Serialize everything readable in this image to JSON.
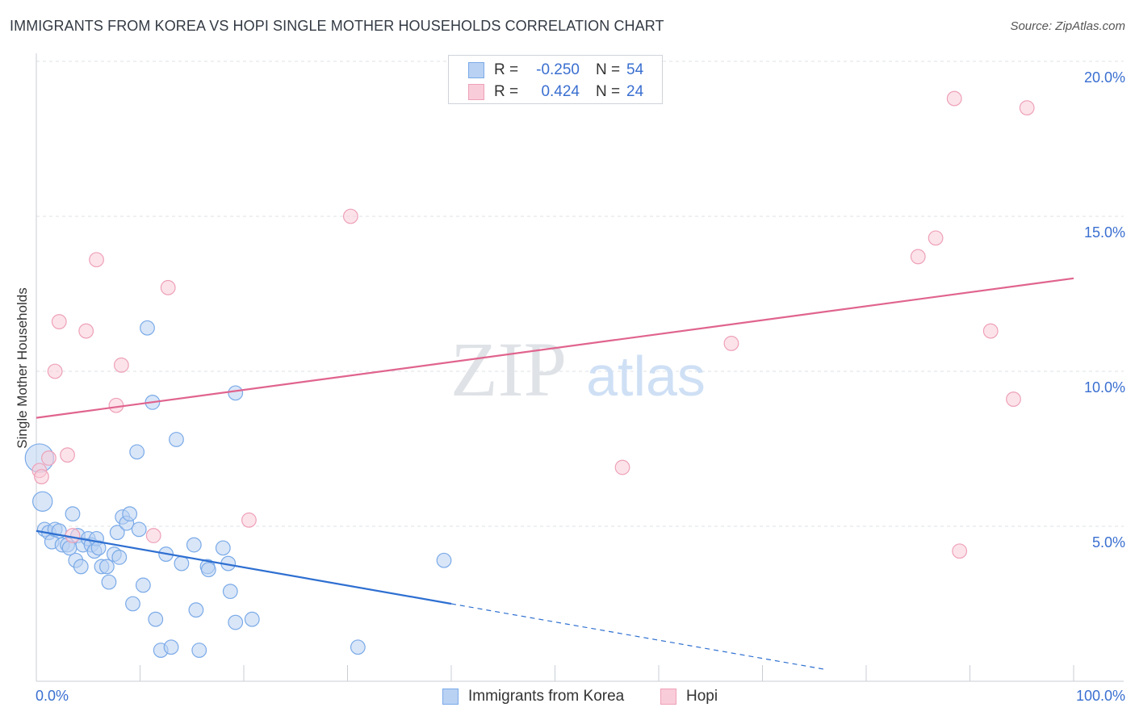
{
  "chart_data": {
    "type": "scatter",
    "title": "IMMIGRANTS FROM KOREA VS HOPI SINGLE MOTHER HOUSEHOLDS CORRELATION CHART",
    "source": "Source: ZipAtlas.com",
    "watermark": {
      "zip": "ZIP",
      "atlas": "atlas"
    },
    "ylabel": "Single Mother Households",
    "xlim": [
      0,
      100
    ],
    "ylim": [
      0,
      20
    ],
    "x_tick_labels": {
      "left": "0.0%",
      "right": "100.0%"
    },
    "y_ticks": [
      {
        "value": 5,
        "label": "5.0%"
      },
      {
        "value": 10,
        "label": "10.0%"
      },
      {
        "value": 15,
        "label": "15.0%"
      },
      {
        "value": 20,
        "label": "20.0%"
      }
    ],
    "legend": [
      {
        "series": "Immigrants from Korea",
        "r_label": "R =",
        "r_value": "-0.250",
        "n_label": "N =",
        "n_value": "54"
      },
      {
        "series": "Hopi",
        "r_label": "R =",
        "r_value": "0.424",
        "n_label": "N =",
        "n_value": "24"
      }
    ],
    "series": [
      {
        "name": "Immigrants from Korea",
        "color": "#7aaae8",
        "fill": "#b9d1f3",
        "line_color": "#2e6fd1",
        "trend": {
          "x0": 0,
          "y0": 4.85,
          "x1": 40,
          "y1": 2.5,
          "dash_to_x": 76
        },
        "points": [
          [
            0.3,
            7.2,
            16
          ],
          [
            0.6,
            5.8,
            11
          ],
          [
            0.8,
            4.9,
            8
          ],
          [
            1.2,
            4.8,
            8
          ],
          [
            1.5,
            4.5,
            8
          ],
          [
            1.8,
            4.9,
            8
          ],
          [
            2.2,
            4.85,
            8
          ],
          [
            2.5,
            4.4,
            8
          ],
          [
            3.0,
            4.4,
            8
          ],
          [
            3.2,
            4.3,
            8
          ],
          [
            3.5,
            5.4,
            8
          ],
          [
            3.8,
            3.9,
            8
          ],
          [
            4.0,
            4.7,
            8
          ],
          [
            4.3,
            3.7,
            8
          ],
          [
            4.5,
            4.4,
            8
          ],
          [
            5.0,
            4.6,
            8
          ],
          [
            5.3,
            4.4,
            8
          ],
          [
            5.6,
            4.2,
            8
          ],
          [
            5.8,
            4.6,
            8
          ],
          [
            6.0,
            4.3,
            8
          ],
          [
            6.3,
            3.7,
            8
          ],
          [
            6.8,
            3.7,
            8
          ],
          [
            7.0,
            3.2,
            8
          ],
          [
            7.5,
            4.1,
            8
          ],
          [
            7.8,
            4.8,
            8
          ],
          [
            8.0,
            4.0,
            8
          ],
          [
            8.3,
            5.3,
            8
          ],
          [
            8.7,
            5.1,
            8
          ],
          [
            9.0,
            5.4,
            8
          ],
          [
            9.3,
            2.5,
            8
          ],
          [
            9.7,
            7.4,
            8
          ],
          [
            9.9,
            4.9,
            8
          ],
          [
            10.3,
            3.1,
            8
          ],
          [
            10.7,
            11.4,
            8
          ],
          [
            11.2,
            9.0,
            8
          ],
          [
            11.5,
            2.0,
            8
          ],
          [
            12.0,
            1.0,
            8
          ],
          [
            12.5,
            4.1,
            8
          ],
          [
            13.0,
            1.1,
            8
          ],
          [
            13.5,
            7.8,
            8
          ],
          [
            14.0,
            3.8,
            8
          ],
          [
            15.2,
            4.4,
            8
          ],
          [
            15.4,
            2.3,
            8
          ],
          [
            15.7,
            1.0,
            8
          ],
          [
            16.5,
            3.7,
            8
          ],
          [
            16.6,
            3.6,
            8
          ],
          [
            18.0,
            4.3,
            8
          ],
          [
            18.5,
            3.8,
            8
          ],
          [
            18.7,
            2.9,
            8
          ],
          [
            19.2,
            1.9,
            8
          ],
          [
            19.2,
            9.3,
            8
          ],
          [
            20.8,
            2.0,
            8
          ],
          [
            31.0,
            1.1,
            8
          ],
          [
            39.3,
            3.9,
            8
          ]
        ]
      },
      {
        "name": "Hopi",
        "color": "#eea1b8",
        "fill": "#f9ccd9",
        "line_color": "#e0648e",
        "trend": {
          "x0": 0,
          "y0": 8.5,
          "x1": 100,
          "y1": 13.0
        },
        "points": [
          [
            0.3,
            6.8,
            8
          ],
          [
            0.5,
            6.6,
            8
          ],
          [
            1.2,
            7.2,
            8
          ],
          [
            1.8,
            10.0,
            8
          ],
          [
            2.2,
            11.6,
            8
          ],
          [
            3.0,
            7.3,
            8
          ],
          [
            3.5,
            4.7,
            8
          ],
          [
            4.8,
            11.3,
            8
          ],
          [
            5.8,
            13.6,
            8
          ],
          [
            7.7,
            8.9,
            8
          ],
          [
            8.2,
            10.2,
            8
          ],
          [
            12.7,
            12.7,
            8
          ],
          [
            11.3,
            4.7,
            8
          ],
          [
            20.5,
            5.2,
            8
          ],
          [
            30.3,
            15.0,
            8
          ],
          [
            56.5,
            6.9,
            8
          ],
          [
            67.0,
            10.9,
            8
          ],
          [
            85.0,
            13.7,
            8
          ],
          [
            86.7,
            14.3,
            8
          ],
          [
            88.5,
            18.8,
            8
          ],
          [
            89.0,
            4.2,
            8
          ],
          [
            92.0,
            11.3,
            8
          ],
          [
            94.2,
            9.1,
            8
          ],
          [
            95.5,
            18.5,
            8
          ]
        ]
      }
    ]
  }
}
